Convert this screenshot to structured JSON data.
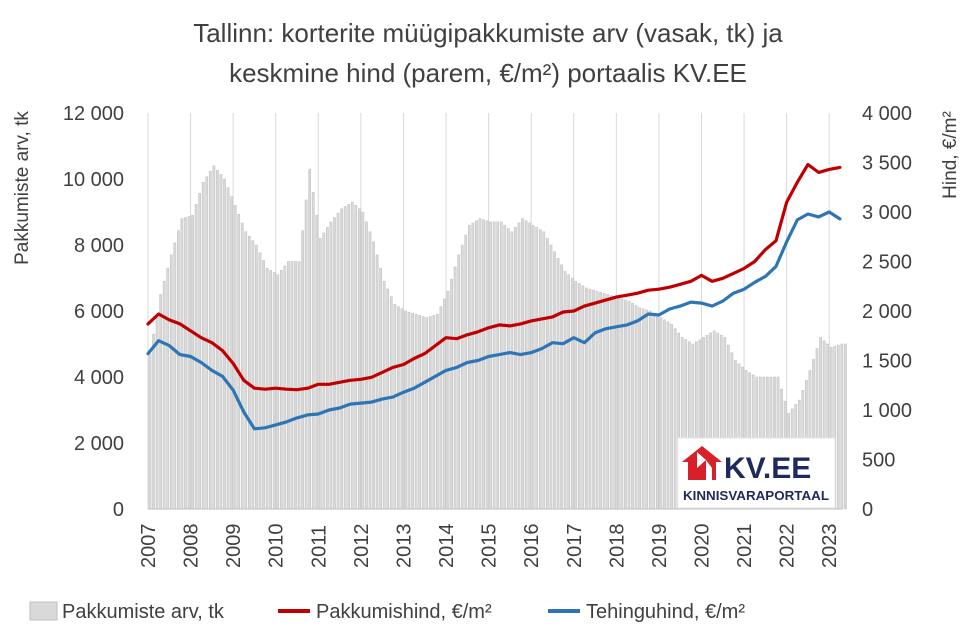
{
  "chart_data": {
    "type": "bar+line",
    "title_lines": [
      "Tallinn: korterite müügipakkumiste arv (vasak, tk) ja",
      "keskmine hind (parem, €/m²) portaalis KV.EE"
    ],
    "ylabel_left": "Pakkumiste arv, tk",
    "ylabel_right": "Hind, €/m²",
    "ylim_left": [
      0,
      12000
    ],
    "ylim_right": [
      0,
      4000
    ],
    "yticks_left": [
      "0",
      "2 000",
      "4 000",
      "6 000",
      "8 000",
      "10 000",
      "12 000"
    ],
    "yticks_right": [
      "0",
      "500",
      "1 000",
      "1 500",
      "2 000",
      "2 500",
      "3 000",
      "3 500",
      "4 000"
    ],
    "x_tick_labels": [
      "2007",
      "2008",
      "2009",
      "2010",
      "2011",
      "2012",
      "2013",
      "2014",
      "2015",
      "2016",
      "2017",
      "2018",
      "2019",
      "2020",
      "2021",
      "2022",
      "2023"
    ],
    "x_range": [
      2007.0,
      2023.3
    ],
    "grid": "vertical-yearly",
    "legend_position": "bottom",
    "colors": {
      "bars": "#d9d9d9",
      "bar_edge": "#bfbfbf",
      "offer_price": "#c00000",
      "deal_price": "#2e75b6"
    },
    "series": [
      {
        "name": "Pakkumiste arv, tk",
        "type": "bar",
        "axis": "left",
        "points": [
          [
            2007.0,
            4700
          ],
          [
            2007.25,
            6500
          ],
          [
            2007.5,
            7700
          ],
          [
            2007.75,
            8800
          ],
          [
            2008.0,
            8900
          ],
          [
            2008.25,
            9900
          ],
          [
            2008.5,
            10400
          ],
          [
            2008.75,
            10000
          ],
          [
            2009.0,
            9200
          ],
          [
            2009.25,
            8400
          ],
          [
            2009.5,
            8000
          ],
          [
            2009.75,
            7300
          ],
          [
            2010.0,
            7100
          ],
          [
            2010.25,
            7500
          ],
          [
            2010.5,
            7500
          ],
          [
            2010.75,
            10300
          ],
          [
            2011.0,
            8200
          ],
          [
            2011.25,
            8700
          ],
          [
            2011.5,
            9100
          ],
          [
            2011.75,
            9300
          ],
          [
            2012.0,
            9000
          ],
          [
            2012.25,
            8100
          ],
          [
            2012.5,
            6900
          ],
          [
            2012.75,
            6200
          ],
          [
            2013.0,
            6000
          ],
          [
            2013.25,
            5900
          ],
          [
            2013.5,
            5800
          ],
          [
            2013.75,
            5900
          ],
          [
            2014.0,
            6600
          ],
          [
            2014.25,
            7700
          ],
          [
            2014.5,
            8600
          ],
          [
            2014.75,
            8800
          ],
          [
            2015.0,
            8700
          ],
          [
            2015.25,
            8700
          ],
          [
            2015.5,
            8400
          ],
          [
            2015.75,
            8800
          ],
          [
            2016.0,
            8600
          ],
          [
            2016.25,
            8400
          ],
          [
            2016.5,
            7800
          ],
          [
            2016.75,
            7200
          ],
          [
            2017.0,
            6900
          ],
          [
            2017.25,
            6700
          ],
          [
            2017.5,
            6600
          ],
          [
            2017.75,
            6500
          ],
          [
            2018.0,
            6400
          ],
          [
            2018.25,
            6300
          ],
          [
            2018.5,
            6100
          ],
          [
            2018.75,
            6000
          ],
          [
            2019.0,
            5800
          ],
          [
            2019.25,
            5600
          ],
          [
            2019.5,
            5200
          ],
          [
            2019.75,
            5000
          ],
          [
            2020.0,
            5200
          ],
          [
            2020.25,
            5400
          ],
          [
            2020.5,
            5200
          ],
          [
            2020.75,
            4500
          ],
          [
            2021.0,
            4200
          ],
          [
            2021.25,
            4000
          ],
          [
            2021.5,
            4000
          ],
          [
            2021.75,
            4000
          ],
          [
            2022.0,
            2900
          ],
          [
            2022.25,
            3300
          ],
          [
            2022.5,
            4200
          ],
          [
            2022.75,
            5200
          ],
          [
            2023.0,
            4900
          ],
          [
            2023.25,
            5000
          ]
        ]
      },
      {
        "name": "Pakkumishind, €/m²",
        "type": "line",
        "axis": "right",
        "points": [
          [
            2007.0,
            1870
          ],
          [
            2007.25,
            1970
          ],
          [
            2007.5,
            1910
          ],
          [
            2007.75,
            1870
          ],
          [
            2008.0,
            1800
          ],
          [
            2008.25,
            1730
          ],
          [
            2008.5,
            1680
          ],
          [
            2008.75,
            1600
          ],
          [
            2009.0,
            1470
          ],
          [
            2009.25,
            1300
          ],
          [
            2009.5,
            1220
          ],
          [
            2009.75,
            1210
          ],
          [
            2010.0,
            1220
          ],
          [
            2010.25,
            1210
          ],
          [
            2010.5,
            1205
          ],
          [
            2010.75,
            1220
          ],
          [
            2011.0,
            1260
          ],
          [
            2011.25,
            1260
          ],
          [
            2011.5,
            1280
          ],
          [
            2011.75,
            1300
          ],
          [
            2012.0,
            1310
          ],
          [
            2012.25,
            1330
          ],
          [
            2012.5,
            1380
          ],
          [
            2012.75,
            1430
          ],
          [
            2013.0,
            1460
          ],
          [
            2013.25,
            1520
          ],
          [
            2013.5,
            1570
          ],
          [
            2013.75,
            1650
          ],
          [
            2014.0,
            1730
          ],
          [
            2014.25,
            1720
          ],
          [
            2014.5,
            1760
          ],
          [
            2014.75,
            1790
          ],
          [
            2015.0,
            1830
          ],
          [
            2015.25,
            1860
          ],
          [
            2015.5,
            1850
          ],
          [
            2015.75,
            1870
          ],
          [
            2016.0,
            1900
          ],
          [
            2016.25,
            1920
          ],
          [
            2016.5,
            1940
          ],
          [
            2016.75,
            1990
          ],
          [
            2017.0,
            2000
          ],
          [
            2017.25,
            2050
          ],
          [
            2017.5,
            2080
          ],
          [
            2017.75,
            2110
          ],
          [
            2018.0,
            2140
          ],
          [
            2018.25,
            2160
          ],
          [
            2018.5,
            2180
          ],
          [
            2018.75,
            2210
          ],
          [
            2019.0,
            2220
          ],
          [
            2019.25,
            2240
          ],
          [
            2019.5,
            2270
          ],
          [
            2019.75,
            2300
          ],
          [
            2020.0,
            2360
          ],
          [
            2020.25,
            2300
          ],
          [
            2020.5,
            2330
          ],
          [
            2020.75,
            2380
          ],
          [
            2021.0,
            2430
          ],
          [
            2021.25,
            2500
          ],
          [
            2021.5,
            2620
          ],
          [
            2021.75,
            2710
          ],
          [
            2022.0,
            3100
          ],
          [
            2022.25,
            3300
          ],
          [
            2022.5,
            3480
          ],
          [
            2022.75,
            3400
          ],
          [
            2023.0,
            3430
          ],
          [
            2023.25,
            3450
          ]
        ]
      },
      {
        "name": "Tehinguhind, €/m²",
        "type": "line",
        "axis": "right",
        "points": [
          [
            2007.0,
            1570
          ],
          [
            2007.25,
            1700
          ],
          [
            2007.5,
            1650
          ],
          [
            2007.75,
            1560
          ],
          [
            2008.0,
            1540
          ],
          [
            2008.25,
            1480
          ],
          [
            2008.5,
            1400
          ],
          [
            2008.75,
            1340
          ],
          [
            2009.0,
            1200
          ],
          [
            2009.25,
            980
          ],
          [
            2009.5,
            810
          ],
          [
            2009.75,
            820
          ],
          [
            2010.0,
            850
          ],
          [
            2010.25,
            880
          ],
          [
            2010.5,
            920
          ],
          [
            2010.75,
            950
          ],
          [
            2011.0,
            960
          ],
          [
            2011.25,
            1000
          ],
          [
            2011.5,
            1020
          ],
          [
            2011.75,
            1060
          ],
          [
            2012.0,
            1070
          ],
          [
            2012.25,
            1080
          ],
          [
            2012.5,
            1110
          ],
          [
            2012.75,
            1130
          ],
          [
            2013.0,
            1180
          ],
          [
            2013.25,
            1220
          ],
          [
            2013.5,
            1280
          ],
          [
            2013.75,
            1340
          ],
          [
            2014.0,
            1400
          ],
          [
            2014.25,
            1430
          ],
          [
            2014.5,
            1480
          ],
          [
            2014.75,
            1500
          ],
          [
            2015.0,
            1540
          ],
          [
            2015.25,
            1560
          ],
          [
            2015.5,
            1580
          ],
          [
            2015.75,
            1560
          ],
          [
            2016.0,
            1580
          ],
          [
            2016.25,
            1620
          ],
          [
            2016.5,
            1680
          ],
          [
            2016.75,
            1670
          ],
          [
            2017.0,
            1730
          ],
          [
            2017.25,
            1680
          ],
          [
            2017.5,
            1780
          ],
          [
            2017.75,
            1820
          ],
          [
            2018.0,
            1840
          ],
          [
            2018.25,
            1860
          ],
          [
            2018.5,
            1900
          ],
          [
            2018.75,
            1970
          ],
          [
            2019.0,
            1960
          ],
          [
            2019.25,
            2020
          ],
          [
            2019.5,
            2050
          ],
          [
            2019.75,
            2090
          ],
          [
            2020.0,
            2080
          ],
          [
            2020.25,
            2050
          ],
          [
            2020.5,
            2100
          ],
          [
            2020.75,
            2180
          ],
          [
            2021.0,
            2220
          ],
          [
            2021.25,
            2290
          ],
          [
            2021.5,
            2350
          ],
          [
            2021.75,
            2450
          ],
          [
            2022.0,
            2700
          ],
          [
            2022.25,
            2920
          ],
          [
            2022.5,
            2980
          ],
          [
            2022.75,
            2950
          ],
          [
            2023.0,
            3000
          ],
          [
            2023.25,
            2930
          ]
        ]
      }
    ],
    "logo": {
      "brand": "KV.EE",
      "tagline": "KINNISVARAPORTAAL"
    }
  }
}
